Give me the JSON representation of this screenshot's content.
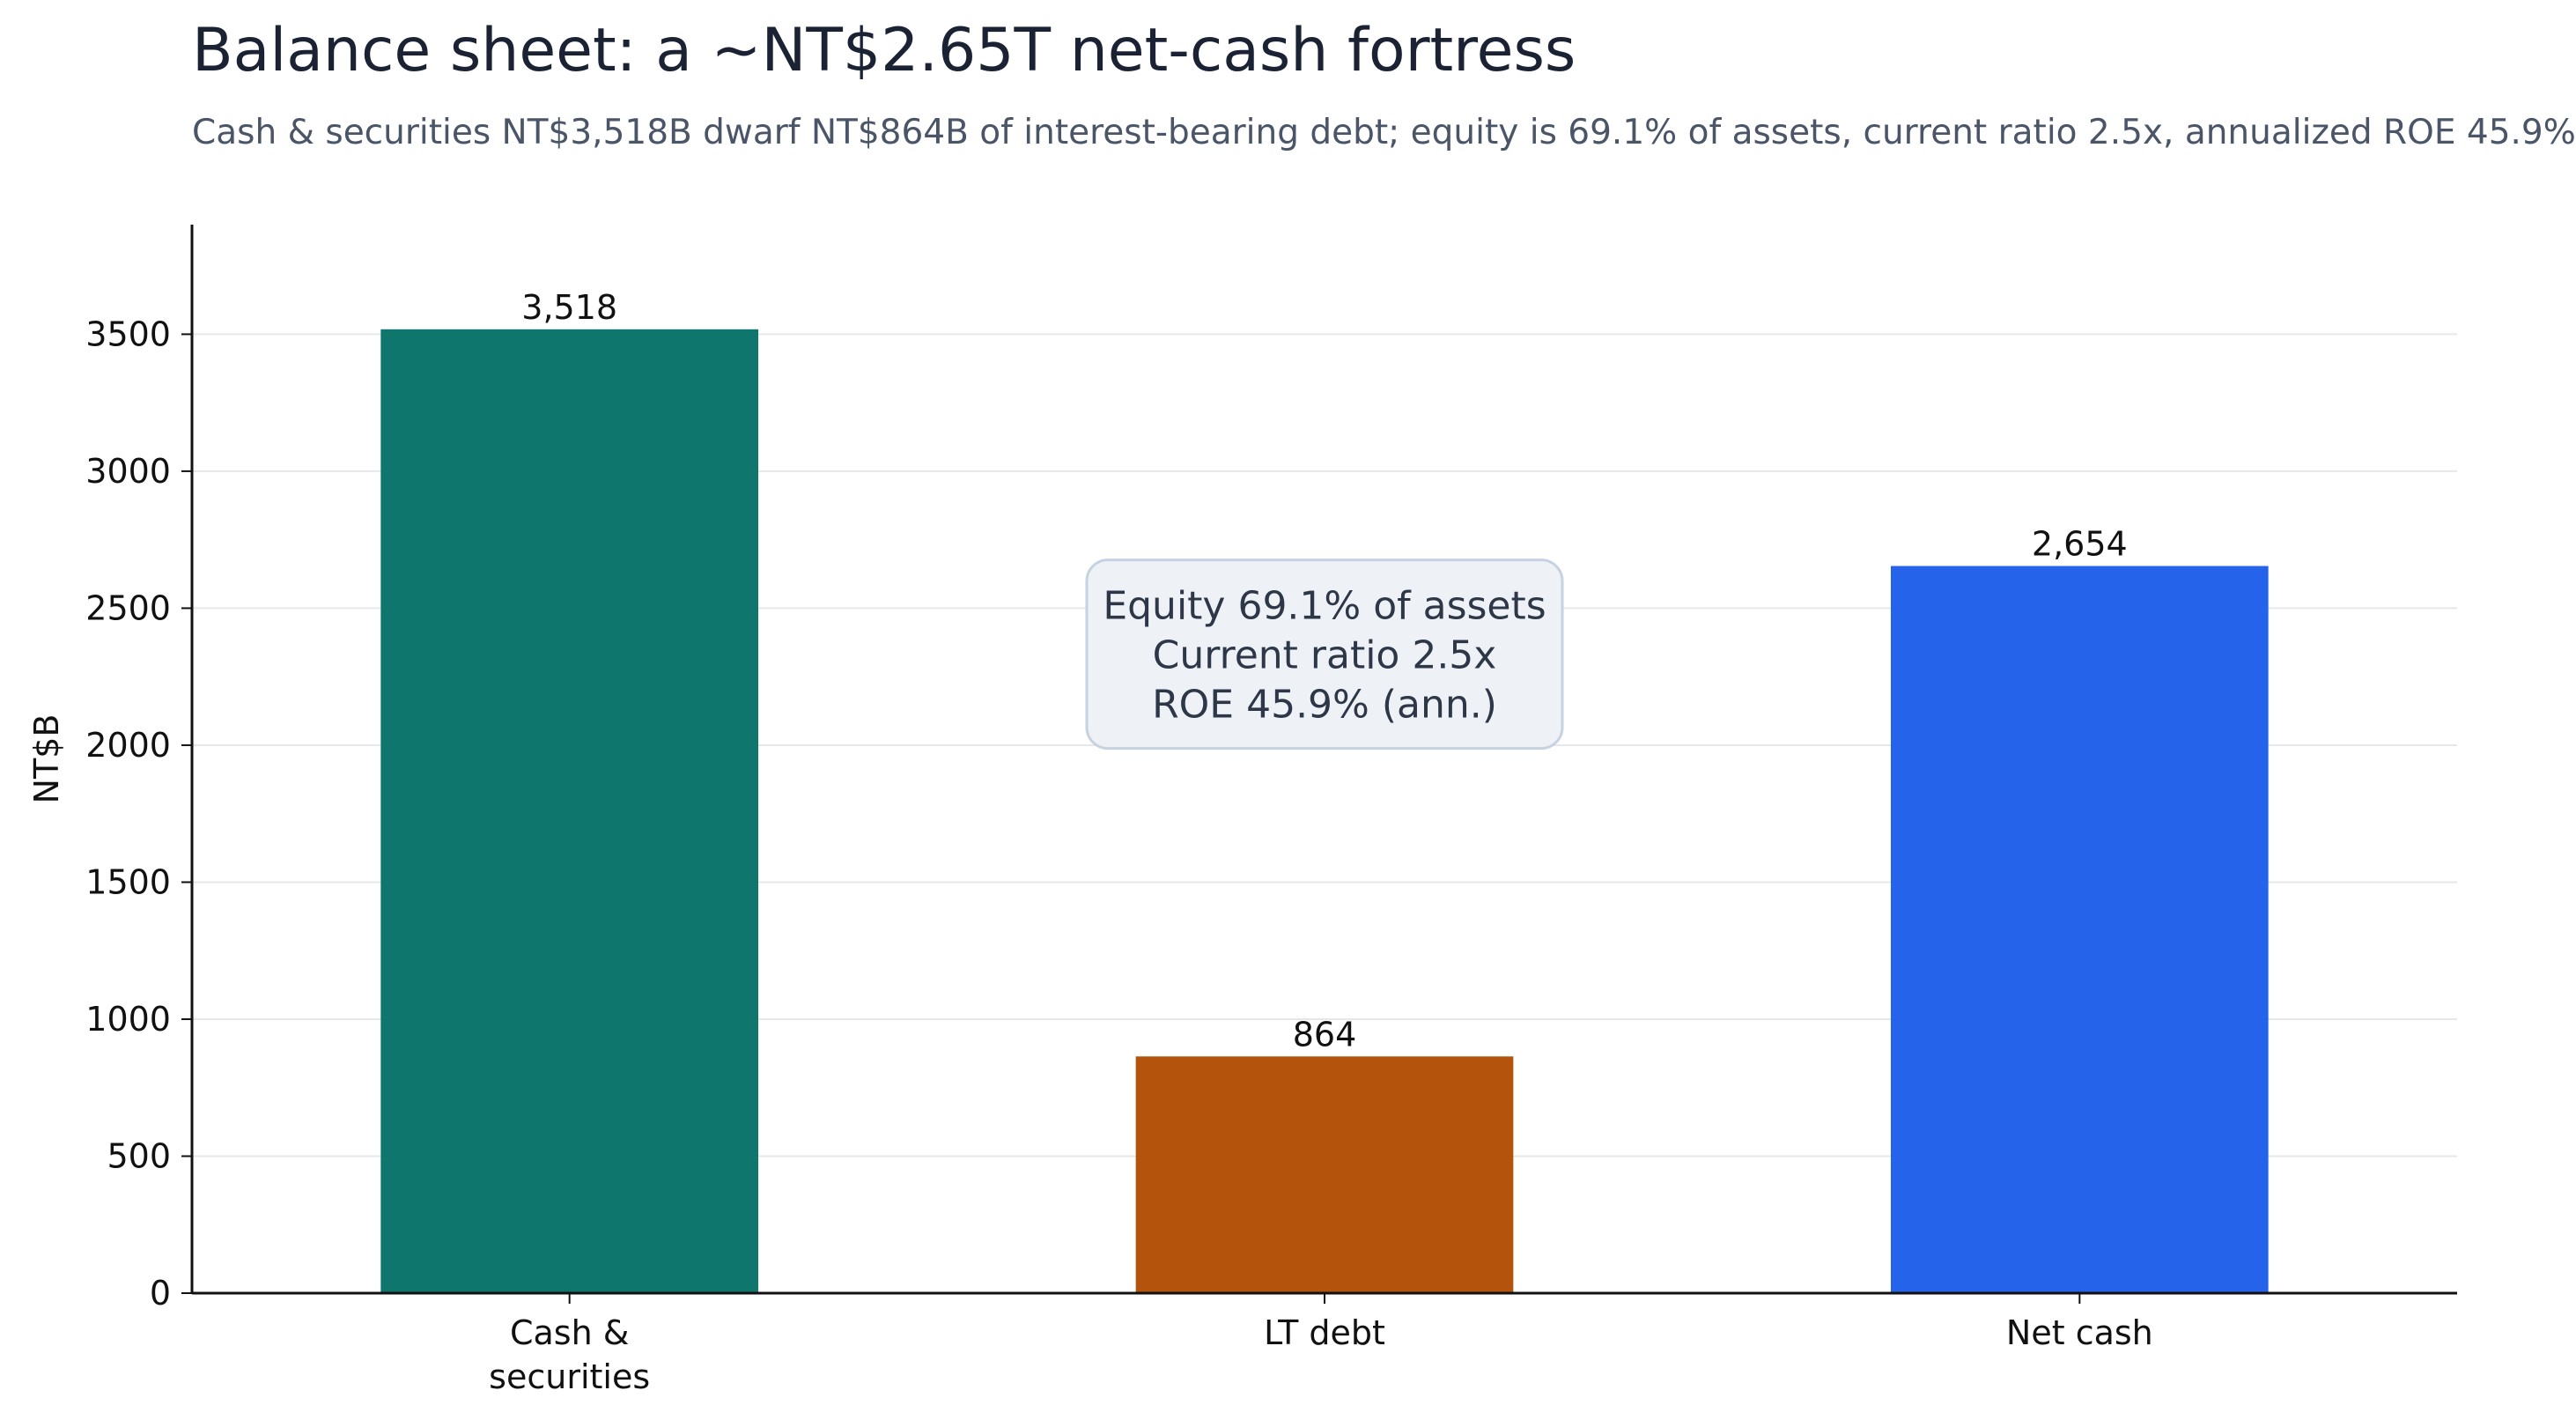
{
  "chart_data": {
    "type": "bar",
    "title": "Balance sheet: a ~NT$2.65T net-cash fortress",
    "subtitle": "Cash & securities NT$3,518B dwarf NT$864B of interest-bearing debt; equity is 69.1% of assets, current ratio 2.5x, annualized ROE 45.9%",
    "xlabel": "",
    "ylabel": "NT$B",
    "ylim": [
      0,
      3900
    ],
    "yticks": [
      0,
      500,
      1000,
      1500,
      2000,
      2500,
      3000,
      3500
    ],
    "grid": true,
    "categories": [
      [
        "Cash &",
        "securities"
      ],
      [
        "LT debt"
      ],
      [
        "Net cash"
      ]
    ],
    "values": [
      3518,
      864,
      2654
    ],
    "data_labels": [
      "3,518",
      "864",
      "2,654"
    ],
    "colors": [
      "#0f766e",
      "#b4530b",
      "#2563eb"
    ],
    "annotation": {
      "lines": [
        "Equity 69.1% of assets",
        "Current ratio 2.5x",
        "ROE 45.9% (ann.)"
      ],
      "center_value": 2300,
      "bg": "#eef2f7",
      "border": "#c7d2e0"
    }
  }
}
